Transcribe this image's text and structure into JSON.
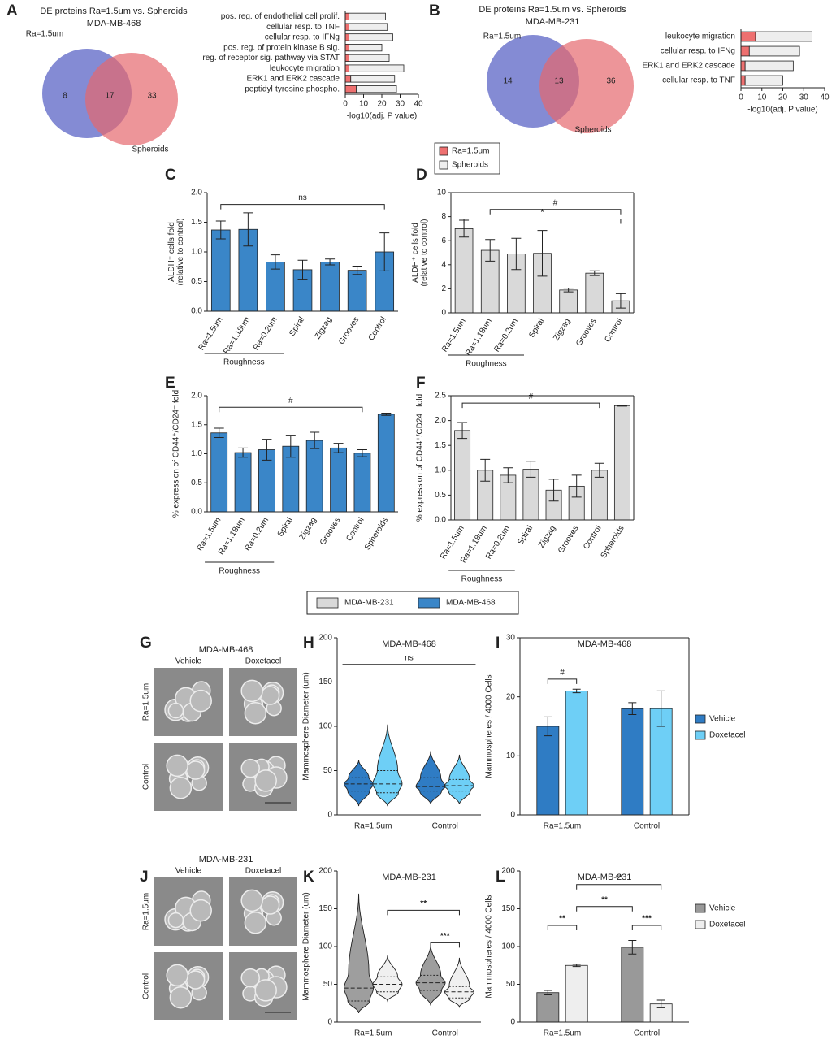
{
  "chart_data": [
    {
      "type": "venn",
      "panel": "A",
      "title": "DE proteins Ra=1.5um vs. Spheroids",
      "subtitle": "MDA-MB-468",
      "sets": [
        "Ra=1.5um",
        "Spheroids"
      ],
      "values": [
        8,
        17,
        33
      ],
      "colors": [
        "#6f77cc",
        "#e5686e"
      ]
    },
    {
      "type": "hbar_stacked",
      "categories": [
        "pos. reg. of endothelial cell prolif.",
        "cellular resp. to TNF",
        "cellular resp. to IFNg",
        "pos. reg. of protein kinase B sig.",
        "reg. of receptor sig. pathway via STAT",
        "leukocyte migration",
        "ERK1 and ERK2 cascade",
        "peptidyl-tyrosine phospho."
      ],
      "highlight": [
        0,
        3,
        4,
        6
      ],
      "highlight_color": "#e8262d",
      "series": [
        {
          "name": "Ra=1.5um",
          "color": "#ee7070",
          "values": [
            2,
            2,
            2,
            2,
            2,
            2,
            3,
            6
          ]
        },
        {
          "name": "Spheroids",
          "color": "#eeeeee",
          "values": [
            20,
            21,
            24,
            18,
            22,
            30,
            24,
            22
          ]
        }
      ],
      "xlim": [
        0,
        40
      ],
      "xticks": [
        0,
        10,
        20,
        30,
        40
      ],
      "xlabel": "-log10(adj. P value)",
      "legend": true
    },
    {
      "type": "venn",
      "panel": "B",
      "title": "DE proteins Ra=1.5um vs. Spheroids",
      "subtitle": "MDA-MB-231",
      "sets": [
        "Ra=1.5um",
        "Spheroids"
      ],
      "values": [
        14,
        13,
        36
      ],
      "colors": [
        "#6f77cc",
        "#e5686e"
      ]
    },
    {
      "type": "hbar_stacked",
      "categories": [
        "leukocyte migration",
        "cellular resp. to IFNg",
        "ERK1 and ERK2 cascade",
        "cellular resp. to TNF"
      ],
      "highlight": [
        2
      ],
      "highlight_color": "#e8262d",
      "series": [
        {
          "color": "#ee7070",
          "values": [
            7,
            4,
            2,
            2
          ]
        },
        {
          "color": "#eeeeee",
          "values": [
            27,
            24,
            23,
            18
          ]
        }
      ],
      "xlim": [
        0,
        40
      ],
      "xticks": [
        0,
        10,
        20,
        30,
        40
      ],
      "xlabel": "-log10(adj. P value)",
      "legend": false
    },
    {
      "type": "bar",
      "panel": "C",
      "categories": [
        "Ra=1.5um",
        "Ra=1.18um",
        "Ra=0.2um",
        "Spiral",
        "Zigzag",
        "Grooves",
        "Control"
      ],
      "values": [
        1.37,
        1.38,
        0.83,
        0.7,
        0.83,
        0.69,
        1.0
      ],
      "errors": [
        0.15,
        0.28,
        0.12,
        0.16,
        0.05,
        0.07,
        0.32
      ],
      "color": "#3a86c8",
      "ylim": [
        0,
        2
      ],
      "yticks": [
        {
          "value": 0,
          "label": "0.0"
        },
        0.5,
        {
          "value": 1,
          "label": "1.0"
        },
        1.5,
        {
          "value": 2,
          "label": "2.0"
        }
      ],
      "ylabel": [
        "ALDH⁺ cells fold",
        "(relative to control)"
      ],
      "group_label": "Roughness",
      "brackets": [
        {
          "from": 0,
          "to": 6,
          "y": 1.8,
          "label": "ns"
        }
      ],
      "frame": false
    },
    {
      "type": "bar",
      "panel": "D",
      "categories": [
        "Ra=1.5um",
        "Ra=1.18um",
        "Ra=0.2um",
        "Spiral",
        "Zigzag",
        "Grooves",
        "Control"
      ],
      "values": [
        7.0,
        5.2,
        4.9,
        4.95,
        1.9,
        3.3,
        1.0
      ],
      "errors": [
        0.7,
        0.9,
        1.3,
        1.9,
        0.15,
        0.2,
        0.6
      ],
      "color": "#d9d9d9",
      "ylim": [
        0,
        10
      ],
      "yticks": [
        0,
        2,
        4,
        6,
        8,
        10
      ],
      "ylabel": [
        "ALDH⁺ cells fold",
        "(relative to control)"
      ],
      "group_label": "Roughness",
      "brackets": [
        {
          "from": 1,
          "to": 6,
          "y": 8.6,
          "label": "#"
        },
        {
          "from": 0,
          "to": 6,
          "y": 7.8,
          "label": "*"
        }
      ],
      "frame": true
    },
    {
      "type": "bar",
      "panel": "E",
      "categories": [
        "Ra=1.5um",
        "Ra=1.18um",
        "Ra=0.2um",
        "Spiral",
        "Zigzag",
        "Grooves",
        "Control",
        "Spheroids"
      ],
      "values": [
        1.36,
        1.02,
        1.07,
        1.13,
        1.23,
        1.1,
        1.01,
        1.68
      ],
      "errors": [
        0.08,
        0.08,
        0.18,
        0.19,
        0.14,
        0.08,
        0.06,
        0.02
      ],
      "color": "#3a86c8",
      "ylim": [
        0,
        2
      ],
      "yticks": [
        {
          "value": 0,
          "label": "0.0"
        },
        0.5,
        {
          "value": 1,
          "label": "1.0"
        },
        1.5,
        {
          "value": 2,
          "label": "2.0"
        }
      ],
      "ylabel": [
        "% expression of CD44⁺/CD24⁻ fold"
      ],
      "group_label": "Roughness",
      "brackets": [
        {
          "from": 0,
          "to": 6,
          "y": 1.8,
          "label": "#"
        }
      ],
      "frame": false
    },
    {
      "type": "bar",
      "panel": "F",
      "categories": [
        "Ra=1.5um",
        "Ra=1.18um",
        "Ra=0.2um",
        "Spiral",
        "Zigzag",
        "Grooves",
        "Control",
        "Spheroids"
      ],
      "values": [
        1.8,
        1.0,
        0.9,
        1.02,
        0.6,
        0.68,
        1.0,
        2.3
      ],
      "errors": [
        0.16,
        0.22,
        0.15,
        0.16,
        0.22,
        0.22,
        0.14,
        0.01
      ],
      "color": "#d9d9d9",
      "ylim": [
        0,
        2.5
      ],
      "yticks": [
        {
          "value": 0,
          "label": "0.0"
        },
        0.5,
        {
          "value": 1,
          "label": "1.0"
        },
        1.5,
        {
          "value": 2,
          "label": "2.0"
        },
        2.5
      ],
      "ylabel": [
        "% expression of CD44⁺/CD24⁻ fold"
      ],
      "group_label": "Roughness",
      "brackets": [
        {
          "from": 0,
          "to": 6,
          "y": 2.35,
          "label": "#"
        }
      ],
      "frame": true
    },
    {
      "type": "legend",
      "series": [
        {
          "name": "MDA-MB-231",
          "color": "#d9d9d9"
        },
        {
          "name": "MDA-MB-468",
          "color": "#3a86c8"
        }
      ]
    },
    {
      "type": "image",
      "panel": "G",
      "title": "MDA-MB-468",
      "columns": [
        "Vehicle",
        "Doxetacel"
      ],
      "rows": [
        "Ra=1.5um",
        "Control"
      ]
    },
    {
      "type": "violin",
      "panel": "H",
      "title": "MDA-MB-468",
      "categories": [
        "Ra=1.5um",
        "Control"
      ],
      "series": [
        {
          "color": "#2f7cc4",
          "values": [
            35,
            32
          ],
          "q1": [
            27,
            27
          ],
          "q3": [
            42,
            42
          ],
          "min": [
            10,
            12
          ],
          "max": [
            62,
            72
          ]
        },
        {
          "color": "#6ecff6",
          "values": [
            35,
            33
          ],
          "q1": [
            25,
            27
          ],
          "q3": [
            50,
            40
          ],
          "min": [
            10,
            12
          ],
          "max": [
            102,
            68
          ]
        }
      ],
      "ylim": [
        0,
        200
      ],
      "yticks": [
        0,
        50,
        100,
        150,
        200
      ],
      "ylabel": [
        "Mammosphere Diameter (um)"
      ],
      "brackets": [
        {
          "from": 0,
          "to": 3,
          "y": 170,
          "label": "ns"
        }
      ],
      "frame": false
    },
    {
      "type": "grouped_bar",
      "panel": "I",
      "title": "MDA-MB-468",
      "categories": [
        "Ra=1.5um",
        "Control"
      ],
      "series": [
        {
          "name": "Vehicle",
          "color": "#2f7cc4",
          "values": [
            15,
            18
          ],
          "errors": [
            1.6,
            1.0
          ]
        },
        {
          "name": "Doxetacel",
          "color": "#6ecff6",
          "values": [
            21,
            18
          ],
          "errors": [
            0.3,
            3
          ]
        }
      ],
      "ylim": [
        0,
        30
      ],
      "yticks": [
        0,
        10,
        20,
        30
      ],
      "ylabel": [
        "Mammospheres / 4000 Cells"
      ],
      "brackets": [
        {
          "from": 0,
          "to": 1,
          "y": 23,
          "label": "#"
        }
      ],
      "frame": true,
      "legend": true
    },
    {
      "type": "image",
      "panel": "J",
      "title": "MDA-MB-231",
      "columns": [
        "Vehicle",
        "Doxetacel"
      ],
      "rows": [
        "Ra=1.5um",
        "Control"
      ]
    },
    {
      "type": "violin",
      "panel": "K",
      "title": "MDA-MB-231",
      "categories": [
        "Ra=1.5um",
        "Control"
      ],
      "series": [
        {
          "color": "#9e9e9e",
          "values": [
            45,
            52
          ],
          "q1": [
            28,
            42
          ],
          "q3": [
            65,
            62
          ],
          "min": [
            12,
            22
          ],
          "max": [
            170,
            102
          ]
        },
        {
          "color": "#f0f0f0",
          "values": [
            50,
            40
          ],
          "q1": [
            40,
            32
          ],
          "q3": [
            60,
            47
          ],
          "min": [
            28,
            20
          ],
          "max": [
            88,
            85
          ]
        }
      ],
      "ylim": [
        0,
        200
      ],
      "yticks": [
        0,
        50,
        100,
        150,
        200
      ],
      "ylabel": [
        "Mammosphere Diameter (um)"
      ],
      "brackets": [
        {
          "from": 1,
          "to": 3,
          "y": 148,
          "label": "**"
        },
        {
          "from": 2,
          "to": 3,
          "y": 105,
          "label": "***"
        }
      ],
      "frame": false
    },
    {
      "type": "grouped_bar",
      "panel": "L",
      "title": "MDA-MB-231",
      "categories": [
        "Ra=1.5um",
        "Control"
      ],
      "series": [
        {
          "name": "Vehicle",
          "color": "#999999",
          "values": [
            39,
            99
          ],
          "errors": [
            3,
            9
          ]
        },
        {
          "name": "Doxetacel",
          "color": "#eeeeee",
          "values": [
            75,
            24
          ],
          "errors": [
            1.5,
            5
          ]
        }
      ],
      "ylim": [
        0,
        200
      ],
      "yticks": [
        0,
        50,
        100,
        150,
        200
      ],
      "ylabel": [
        "Mammospheres / 4000 Cells"
      ],
      "brackets": [
        {
          "from": 1,
          "to": 3,
          "y": 182,
          "label": "**"
        },
        {
          "from": 1,
          "to": 2,
          "y": 153,
          "label": "**"
        },
        {
          "from": 0,
          "to": 1,
          "y": 128,
          "label": "**"
        },
        {
          "from": 2,
          "to": 3,
          "y": 128,
          "label": "***"
        }
      ],
      "frame": false,
      "legend": true
    }
  ]
}
